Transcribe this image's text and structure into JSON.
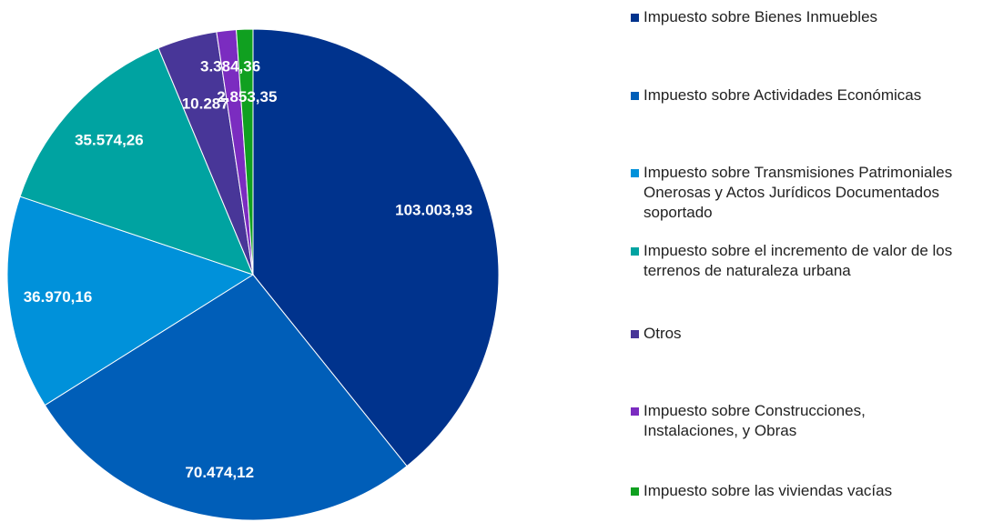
{
  "chart_data": {
    "type": "pie",
    "categories": [
      "Impuesto sobre Bienes Inmuebles",
      "Impuesto sobre Actividades Económicas",
      "Impuesto sobre Transmisiones Patrimoniales Onerosas y Actos Jurídicos Documentados soportado",
      "Impuesto sobre el incremento de valor de los terrenos de naturaleza urbana",
      "Otros",
      "Impuesto sobre Construcciones, Instalaciones, y Obras",
      "Impuesto sobre las viviendas vacías"
    ],
    "values": [
      103003.93,
      70474.12,
      36970.16,
      35574.26,
      10287,
      3384.36,
      2853.35
    ],
    "value_labels": [
      "103.003,93",
      "70.474,12",
      "36.970,16",
      "35.574,26",
      "10.287",
      "3.384,36",
      "2.853,35"
    ],
    "colors": [
      "#00338D",
      "#005EB8",
      "#0091DA",
      "#00A3A1",
      "#483698",
      "#7B2CC0",
      "#10A020"
    ],
    "legend": "right"
  }
}
